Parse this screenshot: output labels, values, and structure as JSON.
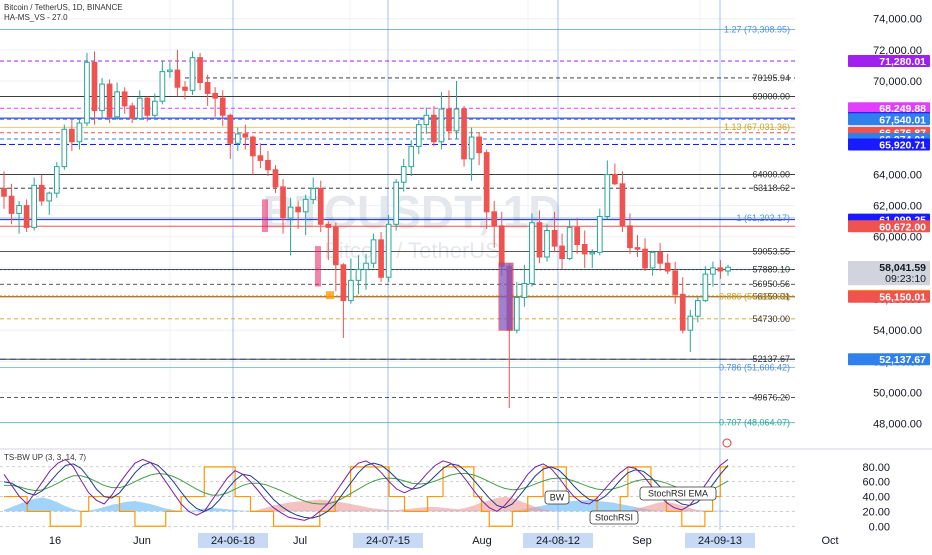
{
  "header": {
    "symbol_line": "Bitcoin / TetherUS, 1D, BINANCE",
    "indicator_line": "HA-MS_VS - 27.0"
  },
  "watermark": {
    "symbol": "BTCUSDT, 1D",
    "name": "Bitcoin / TetherUS"
  },
  "oscillator": {
    "title": "TS-BW UP (3, 3, 14, 7)",
    "callouts": {
      "bw": "BW",
      "stochrsi": "StochRSI",
      "stochrsi_ema": "StochRSI EMA"
    }
  },
  "chart_data": {
    "type": "candlestick",
    "symbol": "BTCUSDT",
    "timeframe": "1D",
    "exchange": "BINANCE",
    "price_axis": {
      "ylim": [
        46500,
        75200
      ],
      "ticks": [
        48000,
        50000,
        52000,
        54000,
        56000,
        58000,
        60000,
        62000,
        64000,
        66000,
        68000,
        70000,
        72000,
        74000
      ],
      "tick_labels": [
        "48,000.00",
        "50,000.00",
        "52,000.00",
        "54,000.00",
        "56,000.00",
        "58,000.00",
        "60,000.00",
        "62,000.00",
        "64,000.00",
        "66,000.00",
        "68,000.00",
        "70,000.00",
        "72,000.00",
        "74,000.00"
      ]
    },
    "time_axis": {
      "labels": [
        "16",
        "Jun",
        "Jul",
        "Aug",
        "Sep",
        "Oct"
      ],
      "highlighted": [
        "24-06-18",
        "24-07-15",
        "24-08-12",
        "24-09-13"
      ]
    },
    "current": {
      "price": "58,041.59",
      "countdown": "09:23:10"
    },
    "price_badges": [
      {
        "label": "71,280.01",
        "value": 71280.01,
        "color": "#a020f0"
      },
      {
        "label": "68,249.88",
        "value": 68249.88,
        "color": "#e040fb"
      },
      {
        "label": "67,614.25",
        "value": 67614.25,
        "color": "#1a1aff"
      },
      {
        "label": "67,540.01",
        "value": 67540.01,
        "color": "#2f80ed"
      },
      {
        "label": "66,676.87",
        "value": 66676.87,
        "color": "#ef5350"
      },
      {
        "label": "66,274.01",
        "value": 66274.01,
        "color": "#2f80ed"
      },
      {
        "label": "65,920.71",
        "value": 65920.71,
        "color": "#1a1aff"
      },
      {
        "label": "61,099.25",
        "value": 61099.25,
        "color": "#1a1aff"
      },
      {
        "label": "60,672.00",
        "value": 60672.0,
        "color": "#ef5350"
      },
      {
        "label": "58,041.59",
        "value": 58041.59,
        "color": "#9e9e9e"
      },
      {
        "label": "57,889.10",
        "value": 57889.1,
        "color": "#26a69a"
      },
      {
        "label": "56,204.13",
        "value": 56204.13,
        "color": "#ff9800"
      },
      {
        "label": "56,150.01",
        "value": 56150.01,
        "color": "#ef5350"
      },
      {
        "label": "52,137.67",
        "value": 52137.67,
        "color": "#2f80ed"
      }
    ],
    "level_labels": [
      {
        "text": "70195.94",
        "value": 70195.94
      },
      {
        "text": "69000.00",
        "value": 69000
      },
      {
        "text": "64000.00",
        "value": 64000
      },
      {
        "text": "63118.62",
        "value": 63118.62
      },
      {
        "text": "59053.55",
        "value": 59053.55
      },
      {
        "text": "57889.10",
        "value": 57889.1
      },
      {
        "text": "56950.56",
        "value": 56950.56
      },
      {
        "text": "56150.01",
        "value": 56150.01
      },
      {
        "text": "54730.00",
        "value": 54730
      },
      {
        "text": "52137.67",
        "value": 52137.67
      },
      {
        "text": "49676.20",
        "value": 49676.2
      }
    ],
    "fib_labels": [
      {
        "text": "1.27 (73,308.95)",
        "value": 73308.95,
        "color": "#4a90d9"
      },
      {
        "text": "1.13 (67,031.36)",
        "value": 67031.36,
        "color": "#c9a227"
      },
      {
        "text": "1 (61,202.17)",
        "value": 61202.17,
        "color": "#4a90d9"
      },
      {
        "text": "0.886 (56,150.01)",
        "value": 56150.01,
        "color": "#c9a227"
      },
      {
        "text": "0.786 (51,606.42)",
        "value": 51606.42,
        "color": "#4a90d9"
      },
      {
        "text": "0.707 (48,064.07)",
        "value": 48064.07,
        "color": "#26a69a"
      }
    ],
    "candles": [
      [
        63100,
        64200,
        61800,
        62600
      ],
      [
        62600,
        63400,
        60800,
        61500
      ],
      [
        61500,
        62300,
        60200,
        62000
      ],
      [
        62000,
        62400,
        60300,
        60600
      ],
      [
        60600,
        63800,
        60400,
        63300
      ],
      [
        63300,
        64000,
        62000,
        62300
      ],
      [
        62300,
        62900,
        61400,
        62800
      ],
      [
        62800,
        64800,
        62500,
        64500
      ],
      [
        64500,
        67200,
        64300,
        66900
      ],
      [
        66900,
        67500,
        65500,
        66100
      ],
      [
        66100,
        67600,
        65600,
        67300
      ],
      [
        67300,
        71800,
        67100,
        71200
      ],
      [
        71200,
        71900,
        67200,
        68100
      ],
      [
        68100,
        70200,
        67600,
        69800
      ],
      [
        69800,
        70100,
        67300,
        67700
      ],
      [
        67700,
        69900,
        67500,
        69300
      ],
      [
        69300,
        69600,
        67900,
        68400
      ],
      [
        68400,
        68600,
        67300,
        67600
      ],
      [
        67600,
        69400,
        67500,
        68900
      ],
      [
        68900,
        69000,
        67400,
        67800
      ],
      [
        67800,
        69200,
        67600,
        68700
      ],
      [
        68700,
        71300,
        68500,
        70600
      ],
      [
        70600,
        71200,
        70200,
        70700
      ],
      [
        70700,
        72000,
        69000,
        69600
      ],
      [
        69600,
        70000,
        68800,
        69400
      ],
      [
        69400,
        71900,
        69100,
        71500
      ],
      [
        71500,
        71800,
        69400,
        69900
      ],
      [
        69900,
        70400,
        68400,
        69200
      ],
      [
        69200,
        69600,
        67700,
        68900
      ],
      [
        68900,
        69400,
        67100,
        67800
      ],
      [
        67800,
        67900,
        65000,
        66000
      ],
      [
        66000,
        67000,
        65500,
        66600
      ],
      [
        66600,
        67200,
        65600,
        66400
      ],
      [
        66400,
        66500,
        64000,
        65200
      ],
      [
        65200,
        66000,
        64400,
        64900
      ],
      [
        64900,
        65500,
        63900,
        64300
      ],
      [
        64300,
        64600,
        62800,
        63200
      ],
      [
        63200,
        63700,
        60200,
        61200
      ],
      [
        61200,
        62500,
        58800,
        61900
      ],
      [
        61900,
        62300,
        60500,
        61600
      ],
      [
        61600,
        62700,
        60100,
        62400
      ],
      [
        62400,
        63800,
        62100,
        63100
      ],
      [
        63100,
        63600,
        60300,
        60800
      ],
      [
        60800,
        61000,
        58500,
        60600
      ],
      [
        60600,
        60900,
        56500,
        58200
      ],
      [
        58200,
        58300,
        53500,
        55900
      ],
      [
        55900,
        58600,
        55700,
        57200
      ],
      [
        57200,
        58800,
        56300,
        57900
      ],
      [
        57900,
        58900,
        56600,
        58300
      ],
      [
        58300,
        60200,
        58000,
        59800
      ],
      [
        59800,
        60300,
        57100,
        57400
      ],
      [
        57400,
        61400,
        57100,
        60800
      ],
      [
        60800,
        63700,
        60400,
        63500
      ],
      [
        63500,
        65000,
        62900,
        64500
      ],
      [
        64500,
        66200,
        63900,
        65800
      ],
      [
        65800,
        67500,
        65300,
        67200
      ],
      [
        67200,
        68300,
        66600,
        67800
      ],
      [
        67800,
        68400,
        65800,
        66100
      ],
      [
        66100,
        69300,
        65600,
        68200
      ],
      [
        68200,
        69400,
        66200,
        66800
      ],
      [
        66800,
        70000,
        66300,
        68200
      ],
      [
        68200,
        68400,
        64500,
        65000
      ],
      [
        65000,
        67000,
        63600,
        66400
      ],
      [
        66400,
        66700,
        64600,
        65400
      ],
      [
        65400,
        65600,
        60500,
        61600
      ],
      [
        61600,
        62300,
        59300,
        60700
      ],
      [
        60700,
        61600,
        57500,
        58100
      ],
      [
        58100,
        58300,
        49000,
        54000
      ],
      [
        54000,
        57100,
        53800,
        56100
      ],
      [
        56100,
        58200,
        55500,
        57000
      ],
      [
        57000,
        61500,
        56800,
        60900
      ],
      [
        60900,
        61700,
        58300,
        58700
      ],
      [
        58700,
        60800,
        58400,
        60400
      ],
      [
        60400,
        61600,
        59000,
        59400
      ],
      [
        59400,
        60200,
        57900,
        58600
      ],
      [
        58600,
        61100,
        58500,
        60600
      ],
      [
        60600,
        61200,
        58900,
        59500
      ],
      [
        59500,
        60400,
        58000,
        58900
      ],
      [
        58900,
        59200,
        58000,
        59000
      ],
      [
        59000,
        61800,
        58800,
        61300
      ],
      [
        61300,
        64900,
        61100,
        64000
      ],
      [
        64000,
        64700,
        63300,
        63400
      ],
      [
        63400,
        64200,
        60300,
        60700
      ],
      [
        60700,
        61500,
        58900,
        59300
      ],
      [
        59300,
        60100,
        58700,
        59200
      ],
      [
        59200,
        59900,
        57800,
        58000
      ],
      [
        58000,
        59100,
        57500,
        59000
      ],
      [
        59000,
        59600,
        57800,
        58300
      ],
      [
        58300,
        58900,
        57600,
        57800
      ],
      [
        57800,
        58400,
        55700,
        56300
      ],
      [
        56300,
        57400,
        53800,
        54000
      ],
      [
        54000,
        55300,
        52600,
        54900
      ],
      [
        54900,
        56100,
        54500,
        55900
      ],
      [
        55900,
        58100,
        55800,
        57600
      ],
      [
        57600,
        58400,
        56800,
        58000
      ],
      [
        58000,
        58500,
        57300,
        57800
      ],
      [
        57800,
        58200,
        57500,
        58041.59
      ]
    ],
    "oscillator": {
      "ylim": [
        -5,
        100
      ],
      "ticks": [
        0,
        20,
        40,
        60,
        80
      ],
      "tick_labels": [
        "0.00",
        "20.00",
        "40.00",
        "60.00",
        "80.00"
      ],
      "stochrsi_k": [
        70,
        55,
        40,
        30,
        45,
        60,
        75,
        85,
        90,
        80,
        62,
        45,
        35,
        30,
        42,
        58,
        72,
        85,
        90,
        86,
        75,
        60,
        45,
        30,
        20,
        15,
        20,
        35,
        50,
        65,
        75,
        70,
        60,
        48,
        35,
        25,
        18,
        12,
        10,
        8,
        12,
        20,
        30,
        45,
        60,
        75,
        85,
        88,
        82,
        72,
        60,
        50,
        45,
        50,
        60,
        72,
        82,
        88,
        85,
        75,
        62,
        48,
        35,
        25,
        20,
        28,
        40,
        55,
        70,
        80,
        84,
        78,
        66,
        52,
        40,
        32,
        30,
        38,
        50,
        62,
        72,
        80,
        78,
        68,
        55,
        42,
        32,
        25,
        22,
        28,
        40,
        55,
        70,
        82,
        90
      ],
      "stochrsi_d": [
        60,
        58,
        52,
        45,
        42,
        48,
        60,
        72,
        82,
        84,
        78,
        65,
        50,
        40,
        38,
        45,
        58,
        72,
        82,
        86,
        82,
        72,
        60,
        46,
        33,
        24,
        20,
        25,
        36,
        50,
        62,
        70,
        68,
        60,
        48,
        36,
        27,
        20,
        15,
        12,
        11,
        14,
        20,
        30,
        44,
        58,
        72,
        82,
        85,
        82,
        74,
        64,
        54,
        50,
        52,
        58,
        68,
        78,
        84,
        82,
        74,
        62,
        50,
        38,
        28,
        25,
        30,
        42,
        55,
        68,
        77,
        80,
        76,
        66,
        54,
        44,
        36,
        34,
        40,
        50,
        62,
        72,
        76,
        74,
        66,
        55,
        45,
        36,
        30,
        28,
        32,
        42,
        56,
        70,
        82
      ],
      "ema": [
        55,
        55,
        53,
        50,
        48,
        49,
        53,
        58,
        64,
        68,
        68,
        65,
        60,
        55,
        52,
        52,
        55,
        60,
        65,
        69,
        71,
        70,
        67,
        62,
        56,
        50,
        45,
        42,
        42,
        45,
        50,
        55,
        58,
        58,
        56,
        52,
        48,
        43,
        38,
        34,
        31,
        30,
        30,
        33,
        38,
        44,
        50,
        56,
        61,
        64,
        65,
        64,
        61,
        58,
        57,
        58,
        61,
        65,
        69,
        71,
        71,
        69,
        65,
        60,
        55,
        51,
        49,
        50,
        53,
        57,
        61,
        64,
        65,
        64,
        61,
        57,
        53,
        50,
        49,
        50,
        53,
        57,
        61,
        63,
        63,
        61,
        58,
        54,
        50,
        47,
        46,
        47,
        50,
        55,
        61
      ],
      "bw_cyan": [
        2,
        6,
        10,
        14,
        17,
        19,
        16,
        12,
        7,
        3,
        1,
        1,
        3,
        6,
        9,
        11,
        13,
        14,
        12,
        10,
        7,
        4,
        2,
        1,
        1,
        2,
        4,
        5,
        4,
        3,
        2,
        1,
        1,
        1,
        1,
        1,
        1,
        1,
        1,
        1,
        1,
        1,
        1,
        1,
        1,
        1,
        1,
        1,
        1,
        1,
        1,
        1,
        1,
        1,
        1,
        1,
        1,
        1,
        1,
        1,
        1,
        1,
        1,
        1,
        1,
        1,
        1,
        2,
        4,
        6,
        8,
        10,
        12,
        13,
        14,
        15,
        15,
        14,
        13,
        12,
        10,
        8,
        6,
        4,
        2,
        1,
        1,
        1,
        1,
        1,
        1,
        1,
        1,
        1,
        1
      ],
      "bw_red": [
        0,
        0,
        0,
        0,
        0,
        0,
        0,
        0,
        0,
        0,
        0,
        0,
        0,
        0,
        0,
        0,
        0,
        0,
        0,
        0,
        0,
        0,
        0,
        0,
        0,
        0,
        0,
        0,
        0,
        0,
        0,
        0,
        0,
        2,
        5,
        8,
        10,
        12,
        13,
        14,
        15,
        16,
        15,
        14,
        12,
        10,
        8,
        6,
        4,
        3,
        2,
        2,
        3,
        4,
        5,
        6,
        6,
        5,
        4,
        3,
        5,
        8,
        12,
        15,
        18,
        20,
        18,
        14,
        10,
        6,
        3,
        1,
        0,
        0,
        0,
        0,
        0,
        0,
        0,
        0,
        0,
        0,
        3,
        6,
        9,
        12,
        13,
        11,
        8,
        5,
        2,
        1,
        0,
        0,
        0
      ],
      "orange_state": [
        40,
        40,
        40,
        20,
        20,
        20,
        0,
        0,
        0,
        0,
        20,
        40,
        40,
        40,
        40,
        20,
        20,
        0,
        0,
        0,
        0,
        20,
        20,
        40,
        40,
        40,
        80,
        80,
        80,
        80,
        40,
        40,
        20,
        20,
        20,
        0,
        0,
        0,
        0,
        0,
        0,
        20,
        20,
        40,
        40,
        80,
        80,
        80,
        80,
        80,
        40,
        40,
        20,
        20,
        20,
        40,
        40,
        80,
        80,
        80,
        80,
        40,
        20,
        0,
        0,
        0,
        20,
        20,
        40,
        40,
        80,
        80,
        80,
        40,
        40,
        40,
        40,
        20,
        20,
        20,
        40,
        80,
        80,
        80,
        40,
        40,
        20,
        20,
        0,
        0,
        0,
        20,
        40,
        80,
        80
      ]
    }
  }
}
